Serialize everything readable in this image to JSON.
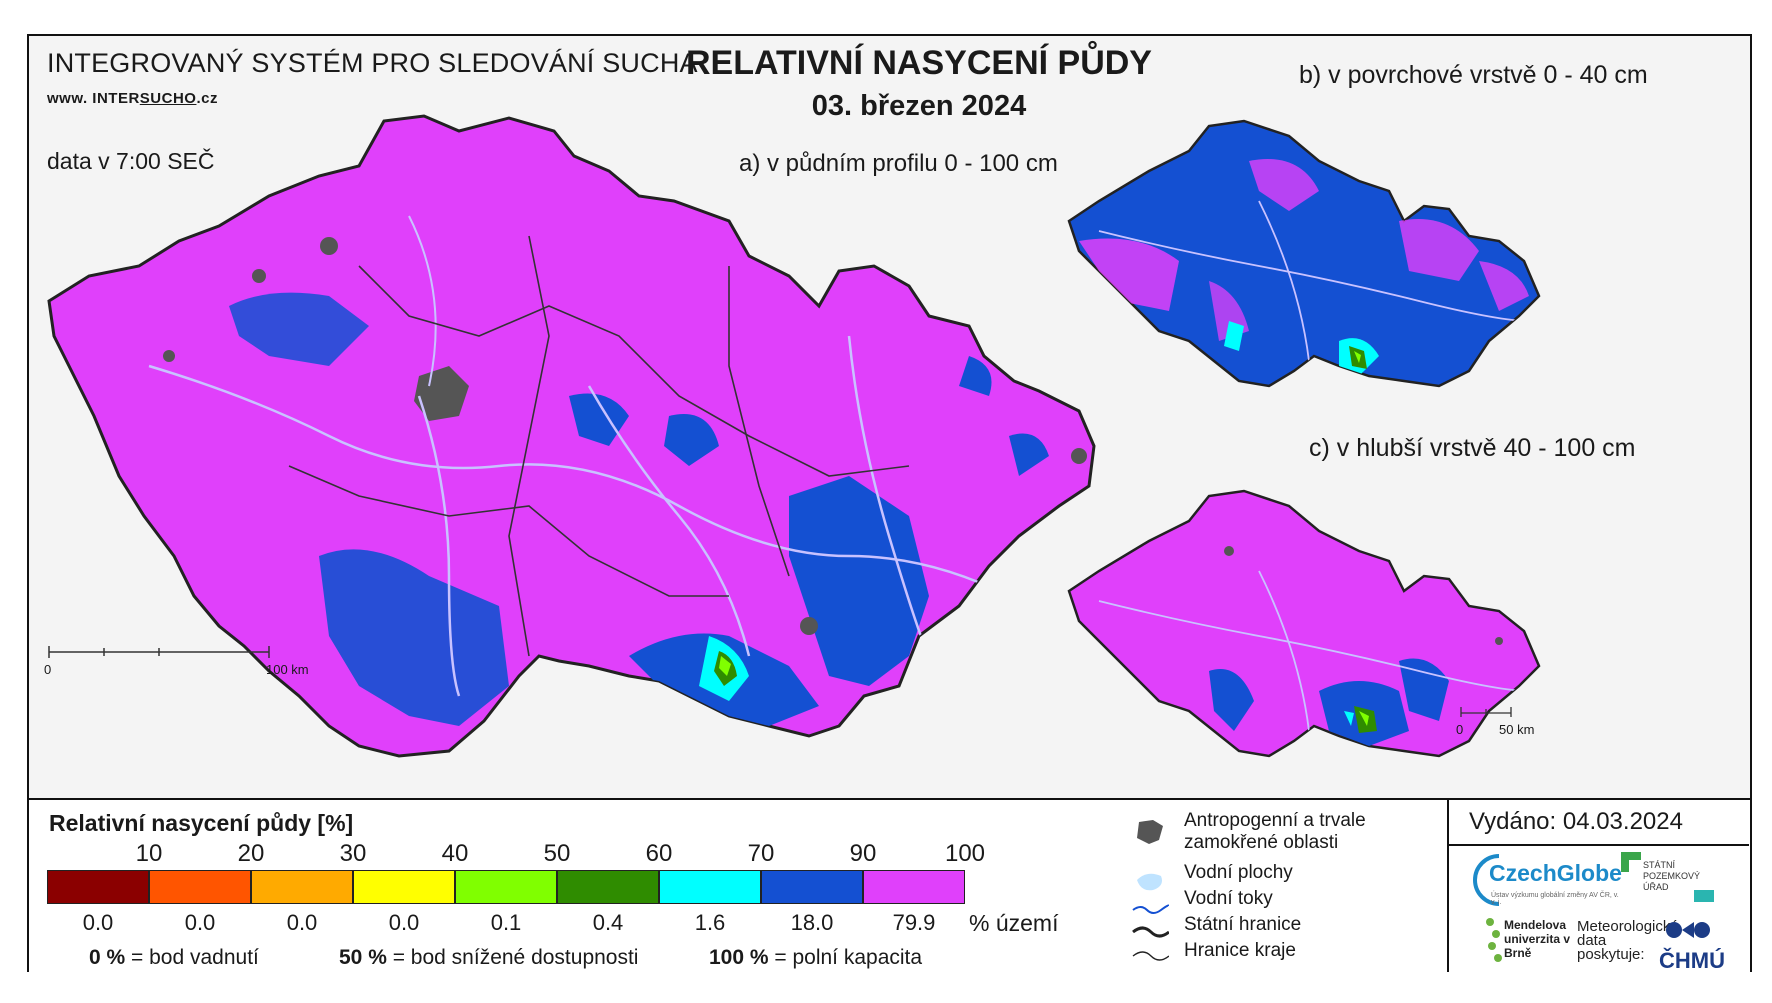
{
  "header": {
    "system_title": "INTEGROVANÝ SYSTÉM PRO SLEDOVÁNÍ SUCHA",
    "website_prefix": "www. INTER",
    "website_brand": "SUCHO",
    "website_suffix": ".cz",
    "data_time": "data v 7:00 SEČ",
    "title": "RELATIVNÍ NASYCENÍ PŮDY",
    "date": "03. březen 2024"
  },
  "maps": {
    "a_label": "a) v půdním profilu 0 - 100 cm",
    "b_label": "b) v povrchové vrstvě 0 - 40 cm",
    "c_label": "c) v hlubší vrstvě 40 - 100 cm",
    "a_scale": {
      "zero": "0",
      "end": "100 km"
    },
    "c_scale": {
      "zero": "0",
      "end": "50 km"
    }
  },
  "legend": {
    "title": "Relativní nasycení půdy [%]",
    "thresholds": [
      "10",
      "20",
      "30",
      "40",
      "50",
      "60",
      "70",
      "90",
      "100"
    ],
    "classes": [
      {
        "color": "#8b0000",
        "share": "0.0"
      },
      {
        "color": "#ff5500",
        "share": "0.0"
      },
      {
        "color": "#ffaa00",
        "share": "0.0"
      },
      {
        "color": "#ffff00",
        "share": "0.0"
      },
      {
        "color": "#80ff00",
        "share": "0.1"
      },
      {
        "color": "#2f8c00",
        "share": "0.4"
      },
      {
        "color": "#00ffff",
        "share": "1.6"
      },
      {
        "color": "#1450d2",
        "share": "18.0"
      },
      {
        "color": "#e040fb",
        "share": "79.9"
      }
    ],
    "unit": "% území",
    "notes": [
      {
        "value": "0 %",
        "text": " = bod vadnutí"
      },
      {
        "value": "50 %",
        "text": " = bod snížené dostupnosti"
      },
      {
        "value": "100 %",
        "text": " = polní kapacita"
      }
    ]
  },
  "symbols": {
    "anthropogenic": "Antropogenní a trvale zamokřené oblasti",
    "water_areas": "Vodní plochy",
    "rivers": "Vodní toky",
    "state_border": "Státní hranice",
    "region_border": "Hranice kraje"
  },
  "issued": "Vydáno: 04.03.2024",
  "logos": {
    "czechglobe": "CzechGlobe",
    "czechglobe_sub": "Ústav výzkumu globální změny AV ČR, v. v. i.",
    "spu": "STÁTNÍ POZEMKOVÝ ÚŘAD",
    "mendel": "Mendelova univerzita v Brně",
    "meteo": "Meteorologická data poskytuje:",
    "chmu": "ČHMÚ"
  },
  "colors": {
    "dominant": "#e040fb",
    "wet": "#1450d2",
    "urban": "#555555",
    "river": "#c9c2ff"
  }
}
